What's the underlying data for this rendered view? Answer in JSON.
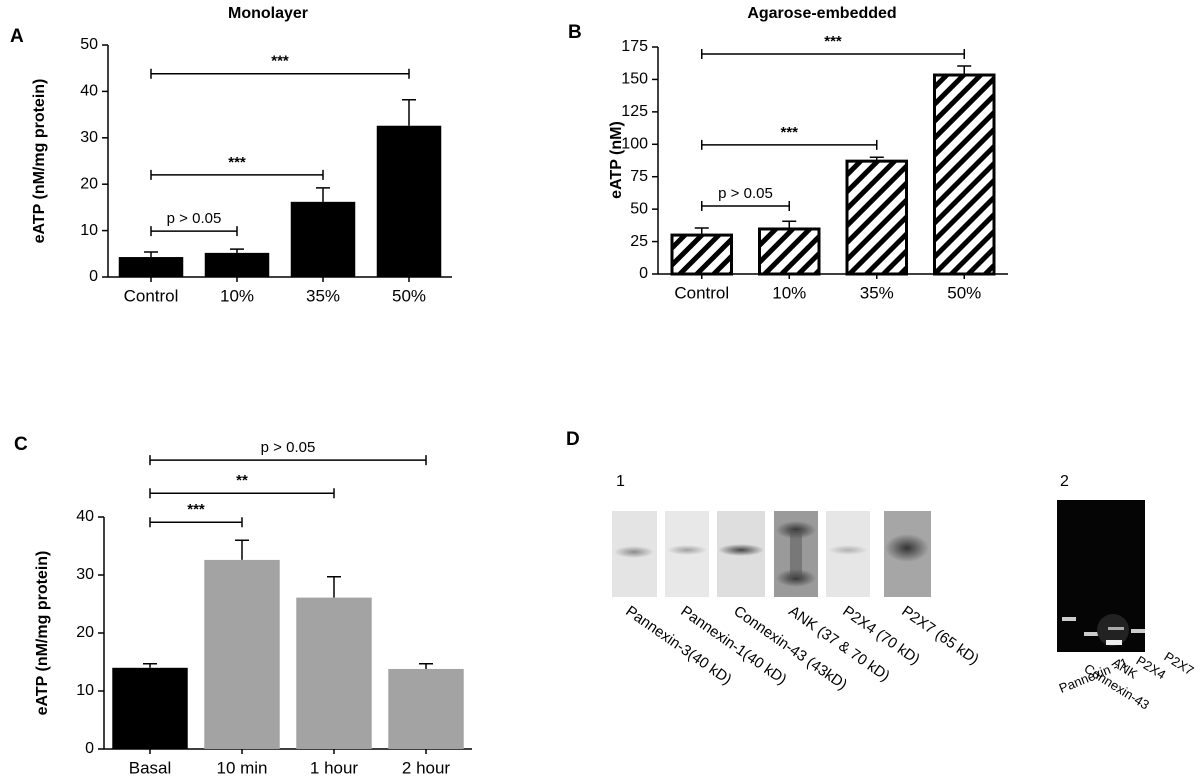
{
  "chart_data": [
    {
      "type": "bar",
      "panel": "A",
      "title": "Monolayer",
      "y_label": "eATP (nM/mg protein)",
      "categories": [
        "Control",
        "10%",
        "35%",
        "50%"
      ],
      "values": [
        4.3,
        5.2,
        16.2,
        32.6
      ],
      "errors": [
        1.1,
        0.8,
        3.0,
        5.6
      ],
      "color": "#000000",
      "ylim": [
        0,
        50
      ],
      "yticks": [
        0,
        10,
        20,
        30,
        40,
        50
      ],
      "annotations": [
        {
          "text": "p > 0.05",
          "from": "Control",
          "to": "10%",
          "y": 9.9
        },
        {
          "text": "***",
          "from": "Control",
          "to": "35%",
          "y": 22
        },
        {
          "text": "***",
          "from": "Control",
          "to": "50%",
          "y": 43.8
        }
      ]
    },
    {
      "type": "bar",
      "panel": "B",
      "title": "Agarose-embedded",
      "y_label": "eATP (nM)",
      "categories": [
        "Control",
        "10%",
        "35%",
        "50%"
      ],
      "values": [
        30,
        34.7,
        87,
        153.4
      ],
      "errors": [
        5.5,
        6,
        3,
        7
      ],
      "color": "#000000",
      "pattern": "hatch",
      "ylim": [
        0,
        175
      ],
      "yticks": [
        0,
        25,
        50,
        75,
        100,
        125,
        150,
        175
      ],
      "annotations": [
        {
          "text": "p > 0.05",
          "from": "Control",
          "to": "10%",
          "y": 52.4
        },
        {
          "text": "***",
          "from": "Control",
          "to": "35%",
          "y": 99.5
        },
        {
          "text": "***",
          "from": "Control",
          "to": "50%",
          "y": 169.6
        }
      ]
    },
    {
      "type": "bar",
      "panel": "C",
      "y_label": "eATP (nM/mg protein)",
      "categories": [
        "Basal",
        "10 min",
        "1 hour",
        "2 hour"
      ],
      "values": [
        14,
        32.6,
        26.1,
        13.8
      ],
      "errors": [
        0.7,
        3.4,
        3.6,
        0.9
      ],
      "colors": [
        "#000000",
        "#a3a3a3",
        "#a3a3a3",
        "#a3a3a3"
      ],
      "ylim": [
        0,
        40
      ],
      "yticks": [
        0,
        10,
        20,
        30,
        40
      ],
      "annotations": [
        {
          "text": "***",
          "from": "Basal",
          "to": "10 min",
          "y": 39.1
        },
        {
          "text": "**",
          "from": "Basal",
          "to": "1 hour",
          "y": 44.1
        },
        {
          "text": "p > 0.05",
          "from": "Basal",
          "to": "2 hour",
          "y": 49.8
        }
      ]
    }
  ],
  "blots": {
    "panel": "D",
    "western": {
      "label": "1",
      "lanes": [
        "Pannexin-3(40 kD)",
        "Pannexin-1(40 kD)",
        "Connexin-43 (43kD)",
        "ANK (37 & 70 kD)",
        "P2X4 (70 kD)",
        "P2X7 (65 kD)"
      ]
    },
    "pcr": {
      "label": "2",
      "lanes": [
        "Pannexin - 1",
        "Connexin-43",
        "ANK",
        "P2X4",
        "P2X7"
      ]
    }
  }
}
